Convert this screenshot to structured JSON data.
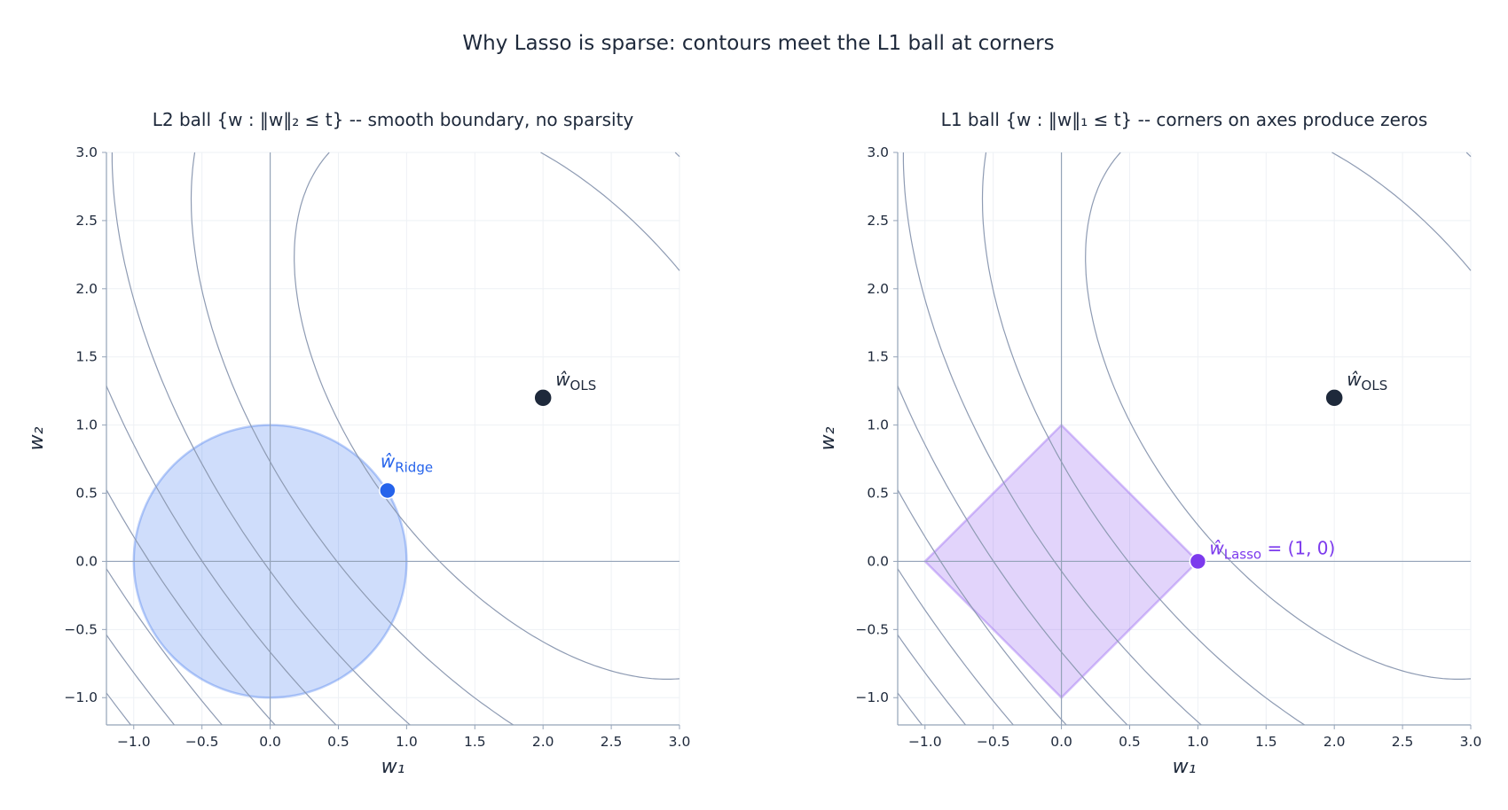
{
  "figure": {
    "suptitle": "Why Lasso is sparse: contours meet the L1 ball at corners"
  },
  "chart_data": [
    {
      "type": "contour",
      "title": "L2 ball  {w : ‖w‖₂ ≤ t} -- smooth boundary, no sparsity",
      "xlabel": "w₁",
      "ylabel": "w₂",
      "xlim": [
        -1.2,
        3.0
      ],
      "ylim": [
        -1.2,
        3.0
      ],
      "xticks": [
        "−1.0",
        "−0.5",
        "0.0",
        "0.5",
        "1.0",
        "1.5",
        "2.0",
        "2.5",
        "3.0"
      ],
      "xtick_values": [
        -1.0,
        -0.5,
        0.0,
        0.5,
        1.0,
        1.5,
        2.0,
        2.5,
        3.0
      ],
      "yticks": [
        "−1.0",
        "−0.5",
        "0.0",
        "0.5",
        "1.0",
        "1.5",
        "2.0",
        "2.5",
        "3.0"
      ],
      "ytick_values": [
        -1.0,
        -0.5,
        0.0,
        0.5,
        1.0,
        1.5,
        2.0,
        2.5,
        3.0
      ],
      "grid": true,
      "loss_contours": {
        "center": [
          2.0,
          1.2
        ],
        "matrix": [
          [
            1.0,
            0.44
          ],
          [
            0.44,
            0.78
          ]
        ],
        "levels": [
          2.5,
          5,
          7.5,
          10,
          12.5,
          15,
          17.5,
          20
        ]
      },
      "constraint": {
        "shape": "circle",
        "norm": "L2",
        "radius": 1.0,
        "color": "#2563eb"
      },
      "points": [
        {
          "name": "ols",
          "x": 2.0,
          "y": 1.2,
          "label_main": "ŵ",
          "label_sub": "OLS",
          "label_extra": "",
          "color": "#1e293b"
        },
        {
          "name": "ridge",
          "x": 0.86,
          "y": 0.52,
          "label_main": "ŵ",
          "label_sub": "Ridge",
          "label_extra": "",
          "color": "#2563eb"
        }
      ]
    },
    {
      "type": "contour",
      "title": "L1 ball  {w : ‖w‖₁ ≤ t} -- corners on axes produce zeros",
      "xlabel": "w₁",
      "ylabel": "w₂",
      "xlim": [
        -1.2,
        3.0
      ],
      "ylim": [
        -1.2,
        3.0
      ],
      "xticks": [
        "−1.0",
        "−0.5",
        "0.0",
        "0.5",
        "1.0",
        "1.5",
        "2.0",
        "2.5",
        "3.0"
      ],
      "xtick_values": [
        -1.0,
        -0.5,
        0.0,
        0.5,
        1.0,
        1.5,
        2.0,
        2.5,
        3.0
      ],
      "yticks": [
        "−1.0",
        "−0.5",
        "0.0",
        "0.5",
        "1.0",
        "1.5",
        "2.0",
        "2.5",
        "3.0"
      ],
      "ytick_values": [
        -1.0,
        -0.5,
        0.0,
        0.5,
        1.0,
        1.5,
        2.0,
        2.5,
        3.0
      ],
      "grid": true,
      "loss_contours": {
        "center": [
          2.0,
          1.2
        ],
        "matrix": [
          [
            1.0,
            0.44
          ],
          [
            0.44,
            0.78
          ]
        ],
        "levels": [
          2.5,
          5,
          7.5,
          10,
          12.5,
          15,
          17.5,
          20
        ]
      },
      "constraint": {
        "shape": "diamond",
        "norm": "L1",
        "radius": 1.0,
        "color": "#7c3aed"
      },
      "points": [
        {
          "name": "ols",
          "x": 2.0,
          "y": 1.2,
          "label_main": "ŵ",
          "label_sub": "OLS",
          "label_extra": "",
          "color": "#1e293b"
        },
        {
          "name": "lasso",
          "x": 1.0,
          "y": 0.0,
          "label_main": "ŵ",
          "label_sub": "Lasso",
          "label_extra": " = (1, 0)",
          "color": "#7c3aed"
        }
      ]
    }
  ],
  "colors": {
    "contour": "#8e9bb3",
    "axis": "#94a3b8",
    "grid": "#eef1f5",
    "text": "#1e293b"
  }
}
